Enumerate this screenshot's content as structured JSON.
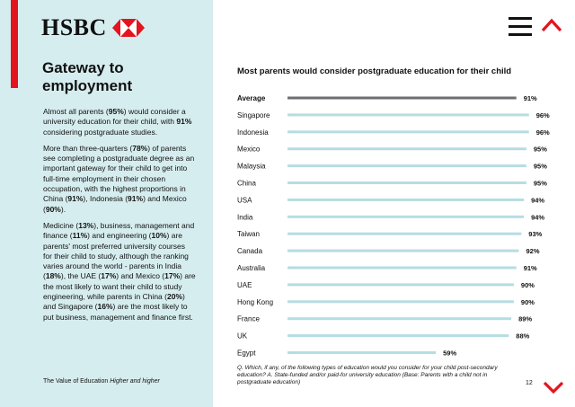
{
  "brand": {
    "logo_text": "HSBC",
    "accent": "#e4141e",
    "sidebar_bg": "#d6edef"
  },
  "nav": {
    "menu_icon": "hamburger-menu-icon",
    "up_icon": "chevron-up-icon",
    "down_icon": "chevron-down-icon"
  },
  "sidebar": {
    "title": "Gateway to employment",
    "paragraphs": [
      [
        {
          "t": "Almost all parents ("
        },
        {
          "t": "95%",
          "b": true
        },
        {
          "t": ") would consider a university education for their child, with "
        },
        {
          "t": "91%",
          "b": true
        },
        {
          "t": " considering postgraduate studies."
        }
      ],
      [
        {
          "t": "More than three-quarters ("
        },
        {
          "t": "78%",
          "b": true
        },
        {
          "t": ") of parents see completing a postgraduate degree as an important gateway for their child to get into full-time employment in their chosen occupation, with the highest proportions in China ("
        },
        {
          "t": "91%",
          "b": true
        },
        {
          "t": "), Indonesia ("
        },
        {
          "t": "91%",
          "b": true
        },
        {
          "t": ") and Mexico ("
        },
        {
          "t": "90%",
          "b": true
        },
        {
          "t": ")."
        }
      ],
      [
        {
          "t": "Medicine ("
        },
        {
          "t": "13%",
          "b": true
        },
        {
          "t": "), business, management and finance ("
        },
        {
          "t": "11%",
          "b": true
        },
        {
          "t": ") and engineering ("
        },
        {
          "t": "10%",
          "b": true
        },
        {
          "t": ") are parents' most preferred university courses for their child to study, although the ranking varies around the world - parents in India ("
        },
        {
          "t": "18%",
          "b": true
        },
        {
          "t": "), the UAE ("
        },
        {
          "t": "17%",
          "b": true
        },
        {
          "t": ") and Mexico ("
        },
        {
          "t": "17%",
          "b": true
        },
        {
          "t": ") are the most likely to want their child to study engineering, while parents in China ("
        },
        {
          "t": "20%",
          "b": true
        },
        {
          "t": ") and Singapore ("
        },
        {
          "t": "16%",
          "b": true
        },
        {
          "t": ") are the most likely to put business, management and finance first."
        }
      ]
    ]
  },
  "footer": {
    "left_prefix": "The Value of Education ",
    "left_italic": "Higher and higher",
    "page_number": "12"
  },
  "footnote": "Q. Which, if any, of the following types of education would you consider for your child post-secondary education? A. State-funded and/or paid-for university education (Base: Parents with a child not in postgraduate education)",
  "chart_data": {
    "type": "bar",
    "orientation": "horizontal",
    "title": "Most parents would consider postgraduate education for their child",
    "categories": [
      "Average",
      "Singapore",
      "Indonesia",
      "Mexico",
      "Malaysia",
      "China",
      "USA",
      "India",
      "Taiwan",
      "Canada",
      "Australia",
      "UAE",
      "Hong Kong",
      "France",
      "UK",
      "Egypt"
    ],
    "values": [
      91,
      96,
      96,
      95,
      95,
      95,
      94,
      94,
      93,
      92,
      91,
      90,
      90,
      89,
      88,
      59
    ],
    "value_labels": [
      "91%",
      "96%",
      "96%",
      "95%",
      "95%",
      "95%",
      "94%",
      "94%",
      "93%",
      "92%",
      "91%",
      "90%",
      "90%",
      "89%",
      "88%",
      "59%"
    ],
    "unit": "%",
    "xlim": [
      0,
      100
    ],
    "highlight_category": "Average",
    "colors": {
      "bar": "#b5dde2",
      "highlight_bar": "#6d6e70"
    },
    "grid": false,
    "legend": "none"
  }
}
